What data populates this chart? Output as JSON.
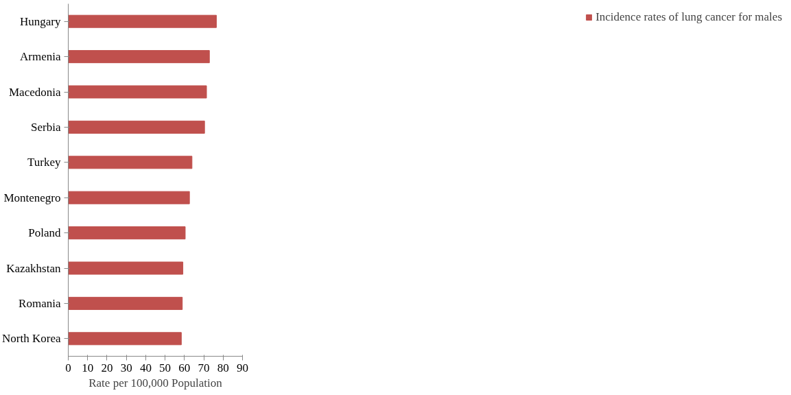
{
  "chart_data": {
    "type": "bar",
    "orientation": "horizontal",
    "xlabel": "Rate per 100,000 Population",
    "categories": [
      "Hungary",
      "Armenia",
      "Macedonia",
      "Serbia",
      "Turkey",
      "Montenegro",
      "Poland",
      "Kazakhstan",
      "Romania",
      "North Korea"
    ],
    "series": [
      {
        "name": "Incidence rates of lung cancer for males",
        "color": "#c0504d",
        "values": [
          76.5,
          72.9,
          71.4,
          70.4,
          63.9,
          62.6,
          60.4,
          59.2,
          58.9,
          58.4
        ]
      }
    ],
    "xlim": [
      0,
      90
    ],
    "xticks": [
      0,
      10,
      20,
      30,
      40,
      50,
      60,
      70,
      80,
      90
    ],
    "grid": false,
    "legend": "right"
  }
}
